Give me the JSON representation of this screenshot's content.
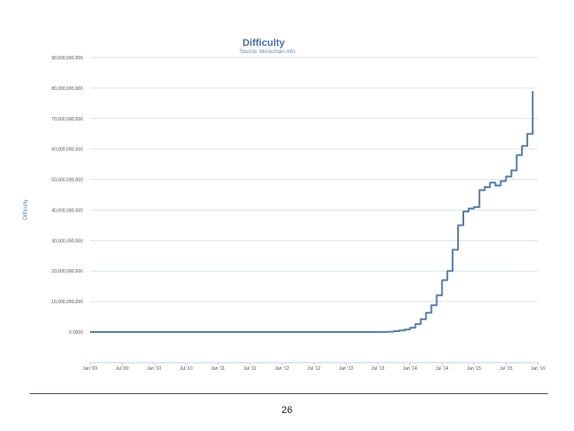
{
  "chart_data": {
    "type": "line",
    "title": "Difficulty",
    "subtitle": "Source: blockchain.info",
    "xlabel": "",
    "ylabel": "Difficulty",
    "ylim": [
      0,
      90000000000
    ],
    "y_ticks": [
      0,
      10000000000,
      20000000000,
      30000000000,
      40000000000,
      50000000000,
      60000000000,
      70000000000,
      80000000000,
      90000000000
    ],
    "y_tick_labels": [
      "0.0000",
      "10,000,000,000",
      "20,000,000,000",
      "30,000,000,000",
      "40,000,000,000",
      "50,000,000,000",
      "60,000,000,000",
      "70,000,000,000",
      "80,000,000,000",
      "90,000,000,000"
    ],
    "x_tick_labels": [
      "Jan '09",
      "Jul '09",
      "Jan '10",
      "Jul '10",
      "Jan '11",
      "Jul '11",
      "Jan '12",
      "Jul '12",
      "Jan '13",
      "Jul '13",
      "Jan '14",
      "Jul '14",
      "Jan '15",
      "Jul '15",
      "Jan '16"
    ],
    "grid": true,
    "legend": "none",
    "series": [
      {
        "color": "#5b7fa6",
        "points": [
          [
            "2009-01",
            0
          ],
          [
            "2010-07",
            0
          ],
          [
            "2011-07",
            1000000
          ],
          [
            "2012-07",
            2000000
          ],
          [
            "2013-01",
            3000000
          ],
          [
            "2013-04",
            10000000
          ],
          [
            "2013-07",
            30000000
          ],
          [
            "2013-09",
            120000000
          ],
          [
            "2013-10",
            300000000
          ],
          [
            "2013-11",
            500000000
          ],
          [
            "2013-12",
            800000000
          ],
          [
            "2014-01",
            1400000000
          ],
          [
            "2014-02",
            2600000000
          ],
          [
            "2014-03",
            4200000000
          ],
          [
            "2014-04",
            6300000000
          ],
          [
            "2014-05",
            8800000000
          ],
          [
            "2014-06",
            12000000000
          ],
          [
            "2014-07",
            17000000000
          ],
          [
            "2014-08",
            20000000000
          ],
          [
            "2014-09",
            27000000000
          ],
          [
            "2014-10",
            35000000000
          ],
          [
            "2014-11",
            39500000000
          ],
          [
            "2014-12",
            40500000000
          ],
          [
            "2015-01",
            41000000000
          ],
          [
            "2015-02",
            46500000000
          ],
          [
            "2015-03",
            47500000000
          ],
          [
            "2015-04",
            49000000000
          ],
          [
            "2015-05",
            48000000000
          ],
          [
            "2015-06",
            49500000000
          ],
          [
            "2015-07",
            51000000000
          ],
          [
            "2015-08",
            53000000000
          ],
          [
            "2015-09",
            58000000000
          ],
          [
            "2015-10",
            61000000000
          ],
          [
            "2015-11",
            65000000000
          ],
          [
            "2015-12",
            79000000000
          ]
        ]
      }
    ]
  },
  "page_number": "26"
}
